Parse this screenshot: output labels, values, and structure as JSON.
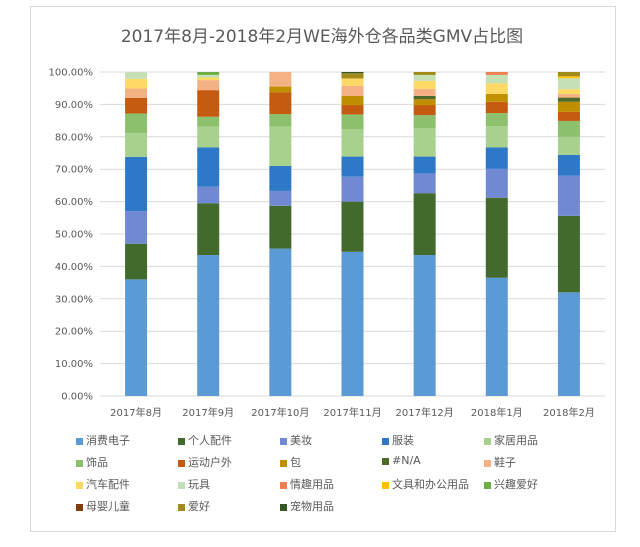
{
  "chart_data": {
    "type": "bar",
    "stacked": "percent",
    "title": "2017年8月-2018年2月WE海外仓各品类GMV占比图",
    "xlabel": "",
    "ylabel": "",
    "ylim": [
      0,
      100
    ],
    "yticks": [
      "0.00%",
      "10.00%",
      "20.00%",
      "30.00%",
      "40.00%",
      "50.00%",
      "60.00%",
      "70.00%",
      "80.00%",
      "90.00%",
      "100.00%"
    ],
    "grid": true,
    "legend_position": "bottom",
    "categories": [
      "2017年8月",
      "2017年9月",
      "2017年10月",
      "2017年11月",
      "2017年12月",
      "2018年1月",
      "2018年2月"
    ],
    "series": [
      {
        "name": "消费电子",
        "color": "#5b9bd5",
        "values": [
          36,
          43.5,
          45.5,
          44.5,
          43.5,
          36.5,
          32
        ]
      },
      {
        "name": "个人配件",
        "color": "#426a2c",
        "values": [
          11,
          16,
          13.2,
          15.5,
          19.1,
          24.7,
          23.6
        ]
      },
      {
        "name": "美妆",
        "color": "#7189d3",
        "values": [
          10,
          5.1,
          4.6,
          7.7,
          6.1,
          8.9,
          12.4
        ]
      },
      {
        "name": "服装",
        "color": "#2e78c8",
        "values": [
          16.8,
          12.1,
          7.7,
          6.2,
          5.2,
          6.6,
          6.4
        ]
      },
      {
        "name": "家居用品",
        "color": "#a9d18e",
        "values": [
          7.3,
          6.4,
          12.1,
          8.4,
          8.7,
          6.6,
          5.6
        ]
      },
      {
        "name": "饰品",
        "color": "#8cc06c",
        "values": [
          6.1,
          3.1,
          3.9,
          4.6,
          4.1,
          4.0,
          4.9
        ]
      },
      {
        "name": "运动户外",
        "color": "#c55a11",
        "values": [
          4.8,
          8.2,
          6.7,
          2.9,
          3.1,
          3.5,
          2.8
        ]
      },
      {
        "name": "包",
        "color": "#bf8f00",
        "values": [
          0,
          0,
          1.8,
          2.8,
          1.8,
          2.4,
          3.1
        ]
      },
      {
        "name": "#N/A",
        "color": "#4e6b2a",
        "values": [
          0,
          0,
          0,
          0,
          1.0,
          0,
          1.3
        ]
      },
      {
        "name": "鞋子",
        "color": "#f4b183",
        "values": [
          2.9,
          3.1,
          4.5,
          3.1,
          2.2,
          0,
          1.1
        ]
      },
      {
        "name": "汽车配件",
        "color": "#ffd966",
        "values": [
          3,
          0.8,
          0,
          2.3,
          2.5,
          3.3,
          1.5
        ]
      },
      {
        "name": "玩具",
        "color": "#c5e0b4",
        "values": [
          2,
          0.8,
          0,
          0,
          1.8,
          2.6,
          3.4
        ]
      },
      {
        "name": "情趣用品",
        "color": "#f08050",
        "values": [
          0,
          0,
          0,
          0,
          0,
          0.9,
          0
        ]
      },
      {
        "name": "文具和办公用品",
        "color": "#ffc000",
        "values": [
          0,
          0,
          0,
          0,
          0,
          0,
          0.6
        ]
      },
      {
        "name": "兴趣爱好",
        "color": "#70ad47",
        "values": [
          0,
          0.9,
          0,
          0,
          0,
          0,
          0
        ]
      },
      {
        "name": "母婴儿童",
        "color": "#843c0c",
        "values": [
          0,
          0,
          0,
          0,
          0,
          0,
          0
        ]
      },
      {
        "name": "爱好",
        "color": "#a08a1a",
        "values": [
          0,
          0,
          0,
          1.6,
          0.9,
          0,
          1.3
        ]
      },
      {
        "name": "宠物用品",
        "color": "#375623",
        "values": [
          0,
          0,
          0,
          0.4,
          0,
          0,
          0
        ]
      }
    ]
  }
}
